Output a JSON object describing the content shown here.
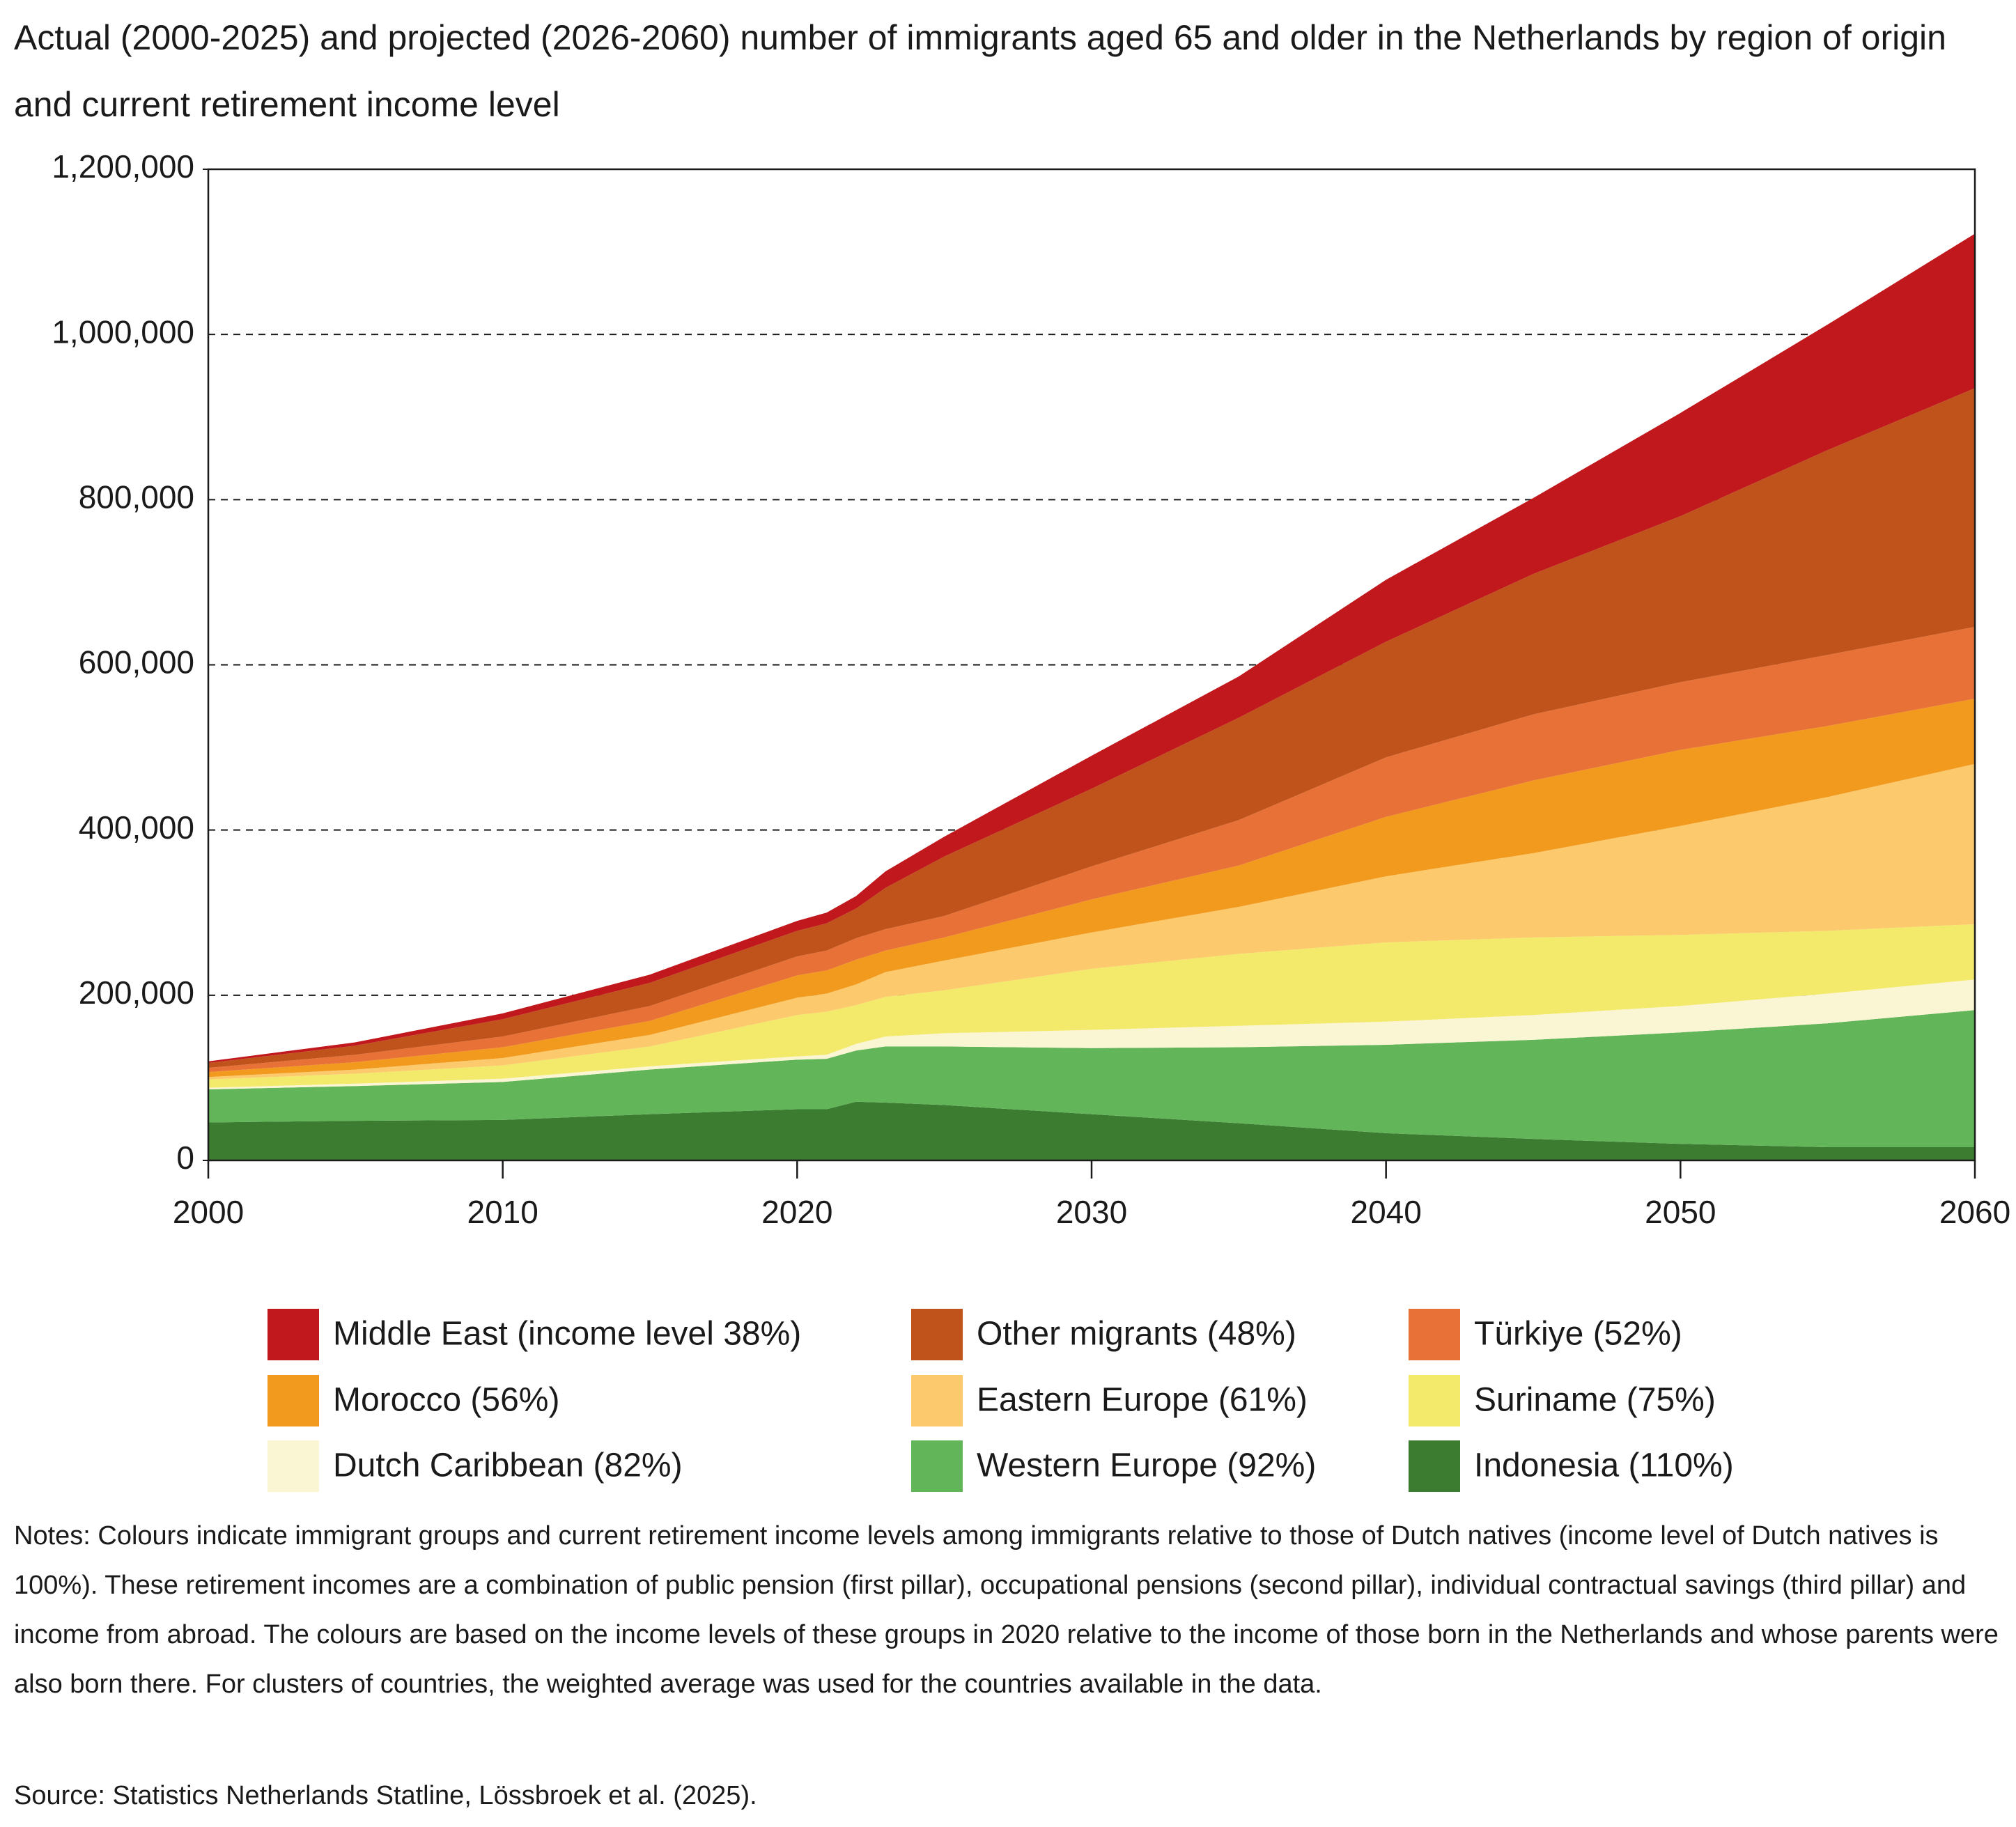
{
  "chart_data": {
    "type": "stacked-area",
    "title": "Actual (2000-2025) and projected (2026-2060) number of immigrants aged 65 and older in the Netherlands by region of origin and current retirement income level",
    "notes": "Notes: Colours indicate immigrant groups and current retirement income levels among immigrants relative to those of Dutch natives (income level of Dutch natives is 100%). These retirement incomes are a combination of public pension (first pillar), occupational pensions (second pillar), individual contractual savings (third pillar) and income from abroad. The colours are based on the income levels of these groups in 2020 relative to the income of those born in the Netherlands and whose parents were also born there. For clusters of countries, the weighted average was used for the countries available in the data.",
    "source": "Source: Statistics Netherlands Statline, Lössbroek et al. (2025).",
    "x": [
      2000,
      2005,
      2010,
      2015,
      2020,
      2021,
      2022,
      2023,
      2025,
      2030,
      2035,
      2040,
      2045,
      2050,
      2055,
      2060
    ],
    "xlim": [
      2000,
      2060
    ],
    "xticks": [
      2000,
      2010,
      2020,
      2030,
      2040,
      2050,
      2060
    ],
    "ylim": [
      0,
      1200000
    ],
    "yticks": [
      0,
      {
        "value": 200000,
        "label": "200,000"
      },
      {
        "value": 400000,
        "label": "400,000"
      },
      {
        "value": 600000,
        "label": "600,000"
      },
      {
        "value": 800000,
        "label": "800,000"
      },
      {
        "value": 1000000,
        "label": "1,000,000"
      },
      {
        "value": 1200000,
        "label": "1,200,000"
      }
    ],
    "grid": true,
    "series": [
      {
        "name": "Middle East (income level 38%)",
        "color": "#c0181c",
        "values": [
          2000,
          4000,
          7000,
          10000,
          12000,
          13000,
          15000,
          20000,
          24000,
          40000,
          50000,
          75000,
          92000,
          125000,
          152000,
          187000
        ]
      },
      {
        "name": "Other migrants (48%)",
        "color": "#c0531c",
        "values": [
          6000,
          11000,
          21000,
          28000,
          31000,
          33000,
          36000,
          50000,
          72000,
          94000,
          124000,
          140000,
          170000,
          201000,
          248000,
          289000
        ]
      },
      {
        "name": "Türkiye (52%)",
        "color": "#e87137",
        "values": [
          5000,
          9000,
          13000,
          18000,
          23000,
          24000,
          26000,
          26000,
          26000,
          40000,
          55000,
          72000,
          80000,
          82000,
          86000,
          87000
        ]
      },
      {
        "name": "Morocco (56%)",
        "color": "#f29a1d",
        "values": [
          6000,
          9000,
          13000,
          17000,
          27000,
          28000,
          30000,
          26000,
          28000,
          40000,
          50000,
          72000,
          88000,
          92000,
          86000,
          79000
        ]
      },
      {
        "name": "Eastern Europe (61%)",
        "color": "#fcc96c",
        "values": [
          3000,
          5000,
          9000,
          14000,
          21000,
          22000,
          25000,
          30000,
          36000,
          44000,
          57000,
          80000,
          102000,
          132000,
          162000,
          194000
        ]
      },
      {
        "name": "Suriname (75%)",
        "color": "#f3ea6c",
        "values": [
          10000,
          12000,
          16000,
          24000,
          50000,
          52000,
          47000,
          48000,
          52000,
          74000,
          87000,
          96000,
          94000,
          86000,
          76000,
          67000
        ]
      },
      {
        "name": "Dutch Caribbean (82%)",
        "color": "#faf5d2",
        "values": [
          2000,
          3000,
          4000,
          4000,
          4000,
          5000,
          8000,
          12000,
          16000,
          22000,
          26000,
          28000,
          30000,
          32000,
          36000,
          37000
        ]
      },
      {
        "name": "Western Europe (92%)",
        "color": "#63b55a",
        "values": [
          40000,
          42000,
          46000,
          54000,
          60000,
          61000,
          62000,
          68000,
          71000,
          80000,
          92000,
          107000,
          120000,
          135000,
          150000,
          166000
        ]
      },
      {
        "name": "Indonesia (110%)",
        "color": "#3b7c30",
        "values": [
          46000,
          48000,
          49000,
          56000,
          62000,
          62000,
          71000,
          70000,
          67000,
          56000,
          45000,
          33000,
          26000,
          20000,
          16000,
          16000
        ]
      }
    ]
  }
}
